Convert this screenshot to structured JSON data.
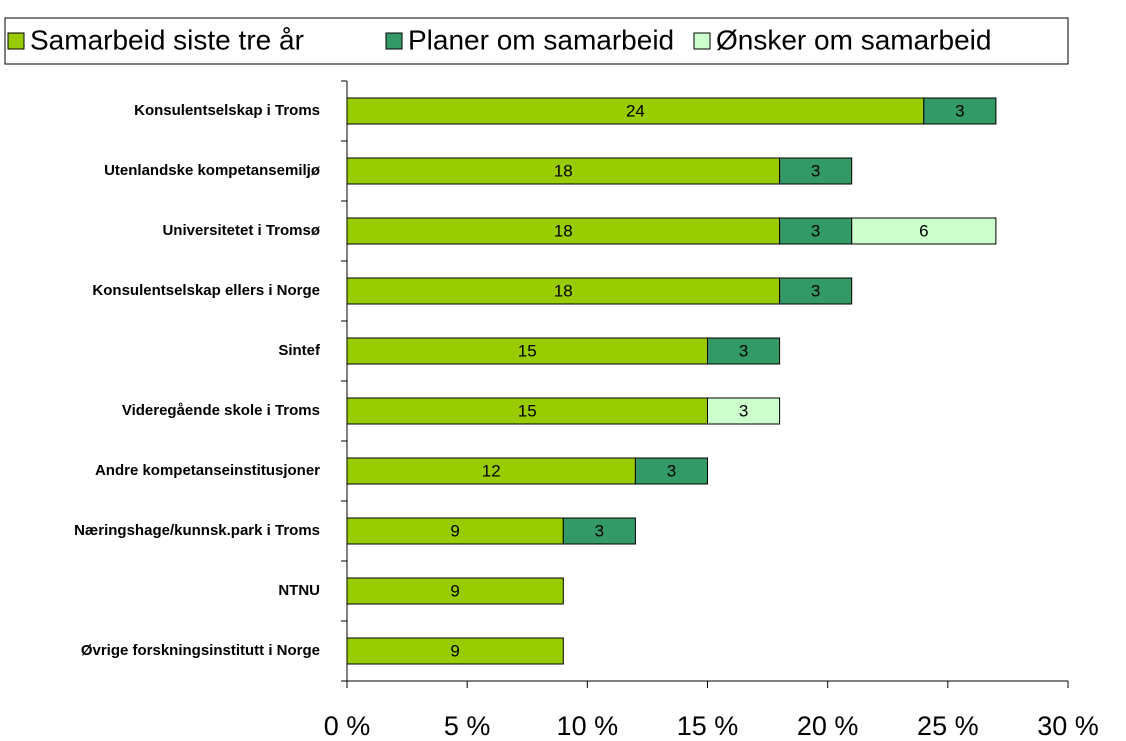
{
  "chart_data": {
    "type": "bar",
    "orientation": "horizontal",
    "stacked": true,
    "categories": [
      "Konsulentselskap i Troms",
      "Utenlandske kompetansemiljø",
      "Universitetet i Tromsø",
      "Konsulentselskap ellers i Norge",
      "Sintef",
      "Videregående skole i Troms",
      "Andre kompetanseinstitusjoner",
      "Næringshage/kunnsk.park i Troms",
      "NTNU",
      "Øvrige forskningsinstitutt i Norge"
    ],
    "series": [
      {
        "name": "Samarbeid siste tre år",
        "color": "#99cc00",
        "values": [
          24,
          18,
          18,
          18,
          15,
          15,
          12,
          9,
          9,
          9
        ]
      },
      {
        "name": "Planer om samarbeid",
        "color": "#339966",
        "values": [
          3,
          3,
          3,
          3,
          3,
          null,
          3,
          3,
          null,
          null
        ]
      },
      {
        "name": "Ønsker om samarbeid",
        "color": "#ccffcc",
        "values": [
          null,
          null,
          6,
          null,
          null,
          3,
          null,
          null,
          null,
          null
        ]
      }
    ],
    "xlim": [
      0,
      30
    ],
    "xticks": [
      {
        "value": 0,
        "label": "0 %"
      },
      {
        "value": 5,
        "label": "5 %"
      },
      {
        "value": 10,
        "label": "10 %"
      },
      {
        "value": 15,
        "label": "15 %"
      },
      {
        "value": 20,
        "label": "20 %"
      },
      {
        "value": 25,
        "label": "25 %"
      },
      {
        "value": 30,
        "label": "30 %"
      }
    ],
    "legend": "top"
  }
}
